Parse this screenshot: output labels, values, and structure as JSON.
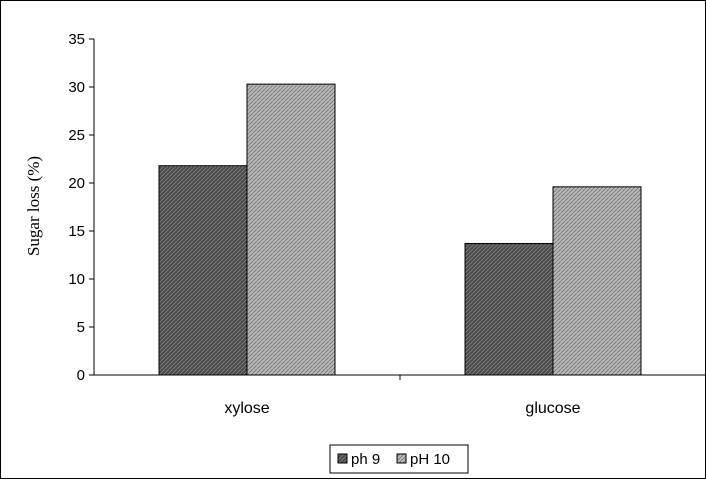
{
  "chart_data": {
    "type": "bar",
    "title": "",
    "xlabel": "",
    "ylabel": "Sugar loss (%)",
    "categories": [
      "xylose",
      "glucose"
    ],
    "series": [
      {
        "name": "ph 9",
        "values": [
          21.8,
          13.7
        ],
        "color": "#555555"
      },
      {
        "name": "pH 10",
        "values": [
          30.3,
          19.6
        ],
        "color": "#a8a8a8"
      }
    ],
    "ylim": [
      0,
      35
    ],
    "yticks": [
      0,
      5,
      10,
      15,
      20,
      25,
      30,
      35
    ],
    "grid": false,
    "legend_position": "bottom"
  }
}
